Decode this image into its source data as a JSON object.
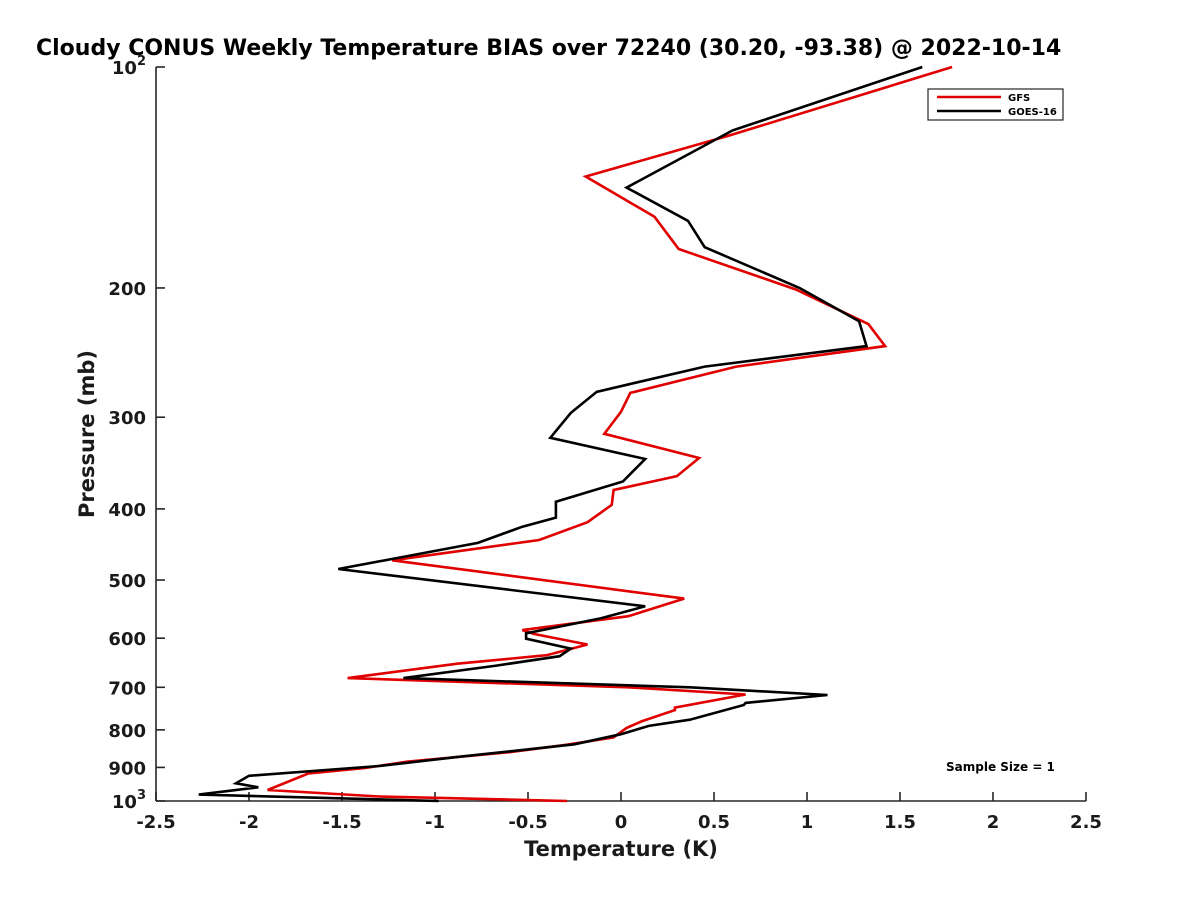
{
  "chart_data": {
    "type": "line",
    "title": "Cloudy CONUS Weekly Temperature BIAS over 72240 (30.20, -93.38) @ 2022-10-14",
    "xlabel": "Temperature (K)",
    "ylabel": "Pressure (mb)",
    "xlim": [
      -2.5,
      2.5
    ],
    "ylim": [
      100,
      1000
    ],
    "yscale": "log",
    "y_reversed": true,
    "x_ticks": [
      "-2.5",
      "-2",
      "-1.5",
      "-1",
      "-0.5",
      "0",
      "0.5",
      "1",
      "1.5",
      "2",
      "2.5"
    ],
    "y_ticks": [
      {
        "value": 100,
        "base": "10",
        "exp": "2"
      },
      {
        "value": 200,
        "label": "200"
      },
      {
        "value": 300,
        "label": "300"
      },
      {
        "value": 400,
        "label": "400"
      },
      {
        "value": 500,
        "label": "500"
      },
      {
        "value": 600,
        "label": "600"
      },
      {
        "value": 700,
        "label": "700"
      },
      {
        "value": 800,
        "label": "800"
      },
      {
        "value": 900,
        "label": "900"
      },
      {
        "value": 1000,
        "base": "10",
        "exp": "3"
      }
    ],
    "legend_position": "top-right",
    "annotation": "Sample Size = 1",
    "series": [
      {
        "name": "GFS",
        "color": "#e00000",
        "x": [
          1.78,
          0.58,
          -0.19,
          0.18,
          0.31,
          0.94,
          1.33,
          1.42,
          0.62,
          0.05,
          0.0,
          -0.09,
          0.42,
          0.3,
          -0.04,
          -0.05,
          -0.18,
          -0.44,
          -1.23,
          0.34,
          0.04,
          -0.53,
          -0.47,
          -0.18,
          -0.4,
          -0.88,
          -1.47,
          0.04,
          0.67,
          0.29,
          0.29,
          0.11,
          0.03,
          -0.04,
          -0.29,
          -0.6,
          -1.15,
          -1.38,
          -1.68,
          -1.9,
          -1.3,
          -0.29
        ],
        "y": [
          100,
          124,
          141,
          160,
          177,
          201,
          224,
          240,
          256,
          278,
          295,
          316,
          341,
          361,
          377,
          395,
          417,
          441,
          470,
          530,
          560,
          585,
          592,
          612,
          633,
          650,
          680,
          700,
          716,
          746,
          752,
          779,
          795,
          819,
          838,
          858,
          884,
          902,
          917,
          966,
          986,
          1000
        ]
      },
      {
        "name": "GOES-16",
        "color": "#000000",
        "x": [
          1.62,
          0.6,
          0.03,
          0.36,
          0.45,
          0.96,
          1.28,
          1.32,
          0.45,
          -0.13,
          -0.27,
          -0.38,
          0.13,
          0.01,
          -0.35,
          -0.35,
          -0.53,
          -0.77,
          -1.52,
          0.13,
          -0.11,
          -0.51,
          -0.51,
          -0.27,
          -0.33,
          -0.67,
          -1.17,
          0.37,
          1.11,
          0.67,
          0.66,
          0.37,
          0.15,
          0.0,
          -0.25,
          -0.86,
          -1.3,
          -2.0,
          -2.07,
          -1.95,
          -2.27,
          -0.98
        ],
        "y": [
          100,
          122,
          146,
          162,
          176,
          200,
          222,
          240,
          256,
          277,
          296,
          320,
          342,
          367,
          391,
          411,
          423,
          445,
          483,
          543,
          564,
          591,
          601,
          620,
          635,
          654,
          680,
          700,
          717,
          735,
          740,
          775,
          790,
          811,
          837,
          870,
          896,
          924,
          946,
          958,
          980,
          1000
        ]
      }
    ]
  }
}
